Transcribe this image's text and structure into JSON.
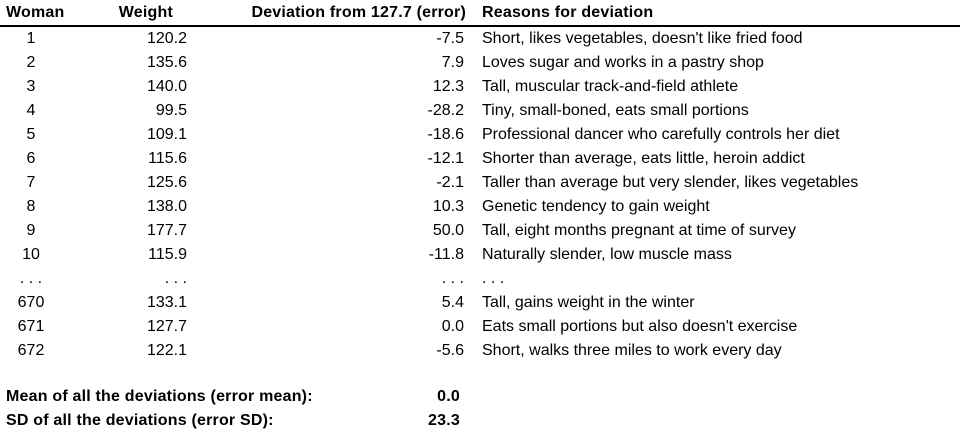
{
  "table": {
    "headers": [
      "Woman",
      "Weight",
      "Deviation from 127.7 (error)",
      "Reasons for deviation"
    ],
    "rows": [
      {
        "woman": "1",
        "weight": "120.2",
        "deviation": "-7.5",
        "reason": "Short, likes vegetables, doesn't like fried food"
      },
      {
        "woman": "2",
        "weight": "135.6",
        "deviation": "7.9",
        "reason": "Loves sugar and works in a pastry shop"
      },
      {
        "woman": "3",
        "weight": "140.0",
        "deviation": "12.3",
        "reason": "Tall, muscular track-and-field athlete"
      },
      {
        "woman": "4",
        "weight": "99.5",
        "deviation": "-28.2",
        "reason": "Tiny, small-boned, eats small portions"
      },
      {
        "woman": "5",
        "weight": "109.1",
        "deviation": "-18.6",
        "reason": "Professional dancer who carefully controls her diet"
      },
      {
        "woman": "6",
        "weight": "115.6",
        "deviation": "-12.1",
        "reason": "Shorter than average, eats little, heroin addict"
      },
      {
        "woman": "7",
        "weight": "125.6",
        "deviation": "-2.1",
        "reason": "Taller than average but very slender, likes vegetables"
      },
      {
        "woman": "8",
        "weight": "138.0",
        "deviation": "10.3",
        "reason": "Genetic tendency to gain weight"
      },
      {
        "woman": "9",
        "weight": "177.7",
        "deviation": "50.0",
        "reason": "Tall, eight months pregnant at time of survey"
      },
      {
        "woman": "10",
        "weight": "115.9",
        "deviation": "-11.8",
        "reason": "Naturally slender, low muscle mass"
      },
      {
        "woman": ". . .",
        "weight": ". . .",
        "deviation": ". . .",
        "reason": ". . ."
      },
      {
        "woman": "670",
        "weight": "133.1",
        "deviation": "5.4",
        "reason": "Tall, gains weight in the winter"
      },
      {
        "woman": "671",
        "weight": "127.7",
        "deviation": "0.0",
        "reason": "Eats small portions but also doesn't exercise"
      },
      {
        "woman": "672",
        "weight": "122.1",
        "deviation": "-5.6",
        "reason": "Short, walks three miles to work every day"
      }
    ]
  },
  "summary": [
    {
      "label": "Mean of all the deviations (error mean):",
      "value": "0.0"
    },
    {
      "label": "SD of all the deviations (error SD):",
      "value": "23.3"
    }
  ]
}
